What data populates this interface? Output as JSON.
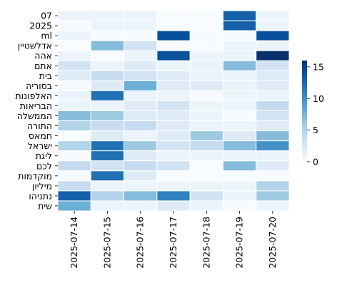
{
  "chart_data": {
    "type": "heatmap",
    "title": "",
    "xlabel": "",
    "ylabel": "",
    "x": [
      "2025-07-14",
      "2025-07-15",
      "2025-07-16",
      "2025-07-17",
      "2025-07-18",
      "2025-07-19",
      "2025-07-20"
    ],
    "y": [
      "07",
      "2025",
      "ml",
      "אדלשטיין",
      "אהה",
      "אתם",
      "בית",
      "בסוריה",
      "האלפונות",
      "הבריאות",
      "הממשלה",
      "התורה",
      "חמאס",
      "ישראל",
      "ליגת",
      "לכם",
      "מוקדמות",
      "מיליון",
      "נתניהו",
      "שית"
    ],
    "values": [
      [
        1,
        1,
        1,
        0,
        0,
        13,
        1
      ],
      [
        0,
        1,
        1,
        0,
        0,
        13,
        1
      ],
      [
        1,
        0,
        0,
        14,
        0,
        0,
        14
      ],
      [
        0,
        7,
        3,
        0,
        0,
        1,
        1
      ],
      [
        1,
        0,
        1,
        14,
        1,
        1,
        16
      ],
      [
        3,
        1,
        2,
        1,
        1,
        7,
        3
      ],
      [
        2,
        4,
        3,
        2,
        1,
        1,
        2
      ],
      [
        0,
        2,
        8,
        2,
        2,
        1,
        2
      ],
      [
        1,
        12,
        1,
        1,
        0,
        1,
        1
      ],
      [
        1,
        1,
        2,
        3,
        1,
        1,
        4
      ],
      [
        7,
        6,
        2,
        2,
        1,
        0,
        3
      ],
      [
        5,
        4,
        4,
        2,
        1,
        1,
        2
      ],
      [
        0,
        2,
        1,
        2,
        6,
        2,
        7
      ],
      [
        5,
        12,
        6,
        3,
        4,
        7,
        10
      ],
      [
        0,
        12,
        2,
        1,
        1,
        1,
        1
      ],
      [
        4,
        3,
        4,
        3,
        0,
        7,
        2
      ],
      [
        0,
        12,
        2,
        0,
        0,
        0,
        0
      ],
      [
        4,
        1,
        1,
        1,
        1,
        1,
        5
      ],
      [
        13,
        5,
        7,
        11,
        3,
        1,
        6
      ],
      [
        8,
        1,
        1,
        2,
        1,
        0,
        1
      ]
    ],
    "vmin": 0,
    "vmax": 16,
    "colorbar": {
      "ticks": [
        0,
        5,
        10,
        15
      ]
    },
    "colormap": [
      "#f7fbff",
      "#deebf7",
      "#c6dbef",
      "#9ecae1",
      "#6baed6",
      "#4292c6",
      "#2171b5",
      "#08519c",
      "#08306b"
    ],
    "grid": false,
    "legend": "colorbar-right"
  }
}
